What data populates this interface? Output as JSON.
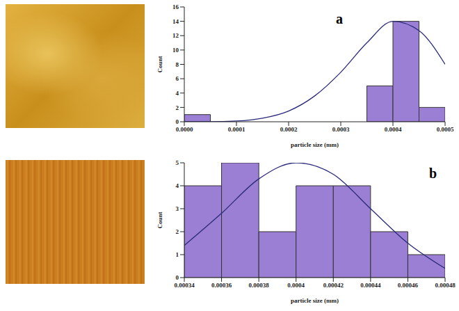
{
  "chart_data": [
    {
      "type": "histogram",
      "panel": "a",
      "x_label": "particle size (mm)",
      "y_label": "Count",
      "bins": [
        0,
        5e-05,
        0.0001,
        0.00015,
        0.0002,
        0.00025,
        0.0003,
        0.00035,
        0.0004,
        0.00045,
        0.0005
      ],
      "counts": [
        1,
        0,
        0,
        0,
        0,
        0,
        0,
        5,
        14,
        2
      ],
      "color": "#9b7fd4",
      "xlim": [
        0,
        0.0005
      ],
      "xticks": [
        {
          "value": 0,
          "label": "0.0000"
        },
        0.0001,
        0.0002,
        0.0003,
        0.0004,
        0.0005
      ],
      "ylim": [
        0,
        16
      ],
      "yticks": [
        0,
        2,
        4,
        6,
        8,
        10,
        12,
        14,
        16
      ],
      "grid": false,
      "fit": {
        "type": "line",
        "color": "#2a2a7a",
        "x": [
          0,
          5e-05,
          0.0001,
          0.00015,
          0.0002,
          0.00025,
          0.0003,
          0.00035,
          0.0004,
          0.00045,
          0.0005
        ],
        "y": [
          0,
          0,
          0.1,
          0.5,
          1.5,
          3.6,
          6.9,
          11,
          14,
          12.7,
          8
        ]
      }
    },
    {
      "type": "histogram",
      "panel": "b",
      "x_label": "particle size (mm)",
      "y_label": "Count",
      "bins": [
        0.00034,
        0.00036,
        0.00038,
        0.0004,
        0.00042,
        0.00044,
        0.00046,
        0.00048
      ],
      "counts": [
        4,
        5,
        2,
        4,
        4,
        2,
        1
      ],
      "color": "#9b7fd4",
      "xlim": [
        0.00034,
        0.00048
      ],
      "xticks": [
        0.00034,
        0.00036,
        0.00038,
        0.0004,
        0.00042,
        0.00044,
        0.00046,
        0.00048
      ],
      "ylim": [
        0,
        5
      ],
      "yticks": [
        0,
        1,
        2,
        3,
        4,
        5
      ],
      "grid": false,
      "fit": {
        "type": "line",
        "color": "#2a2a7a",
        "x": [
          0.00034,
          0.00036,
          0.00038,
          0.0004,
          0.00042,
          0.00044,
          0.00046,
          0.00048
        ],
        "y": [
          1.4,
          2.8,
          4.3,
          5,
          4.5,
          3,
          1.5,
          0.4
        ]
      }
    }
  ]
}
